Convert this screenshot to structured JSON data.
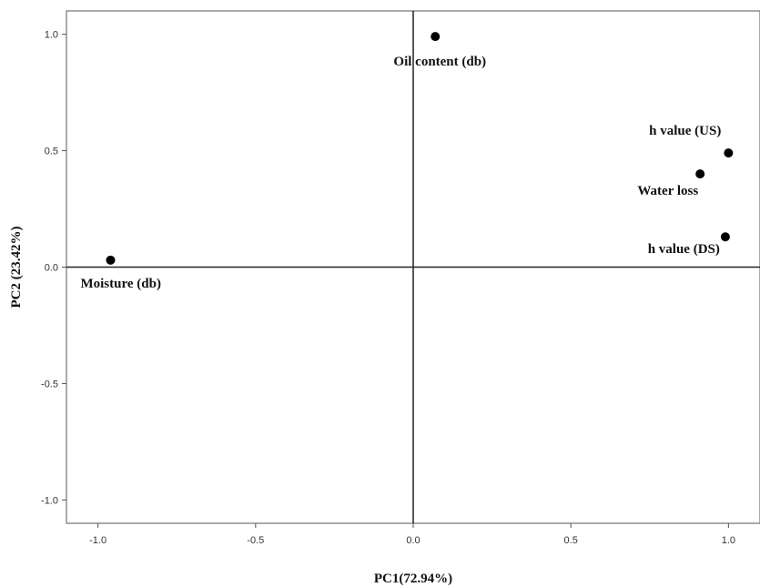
{
  "chart_data": {
    "type": "scatter",
    "xlabel": "PC1(72.94%)",
    "ylabel": "PC2 (23.42%)",
    "xlim": [
      -1.1,
      1.1
    ],
    "ylim": [
      -1.1,
      1.1
    ],
    "xticks": [
      "-1.0",
      "-0.5",
      "0.0",
      "0.5",
      "1.0"
    ],
    "yticks": [
      "-1.0",
      "-0.5",
      "0.0",
      "0.5",
      "1.0"
    ],
    "grid": false,
    "reference_lines": {
      "x": 0,
      "y": 0
    },
    "points": [
      {
        "label": "Oil content (db)",
        "x": 0.07,
        "y": 0.99
      },
      {
        "label": "h value (US)",
        "x": 1.0,
        "y": 0.49
      },
      {
        "label": "Water loss",
        "x": 0.91,
        "y": 0.4
      },
      {
        "label": "h value (DS)",
        "x": 0.99,
        "y": 0.13
      },
      {
        "label": "Moisture (db)",
        "x": -0.96,
        "y": 0.03
      }
    ],
    "point_color": "#000000"
  }
}
